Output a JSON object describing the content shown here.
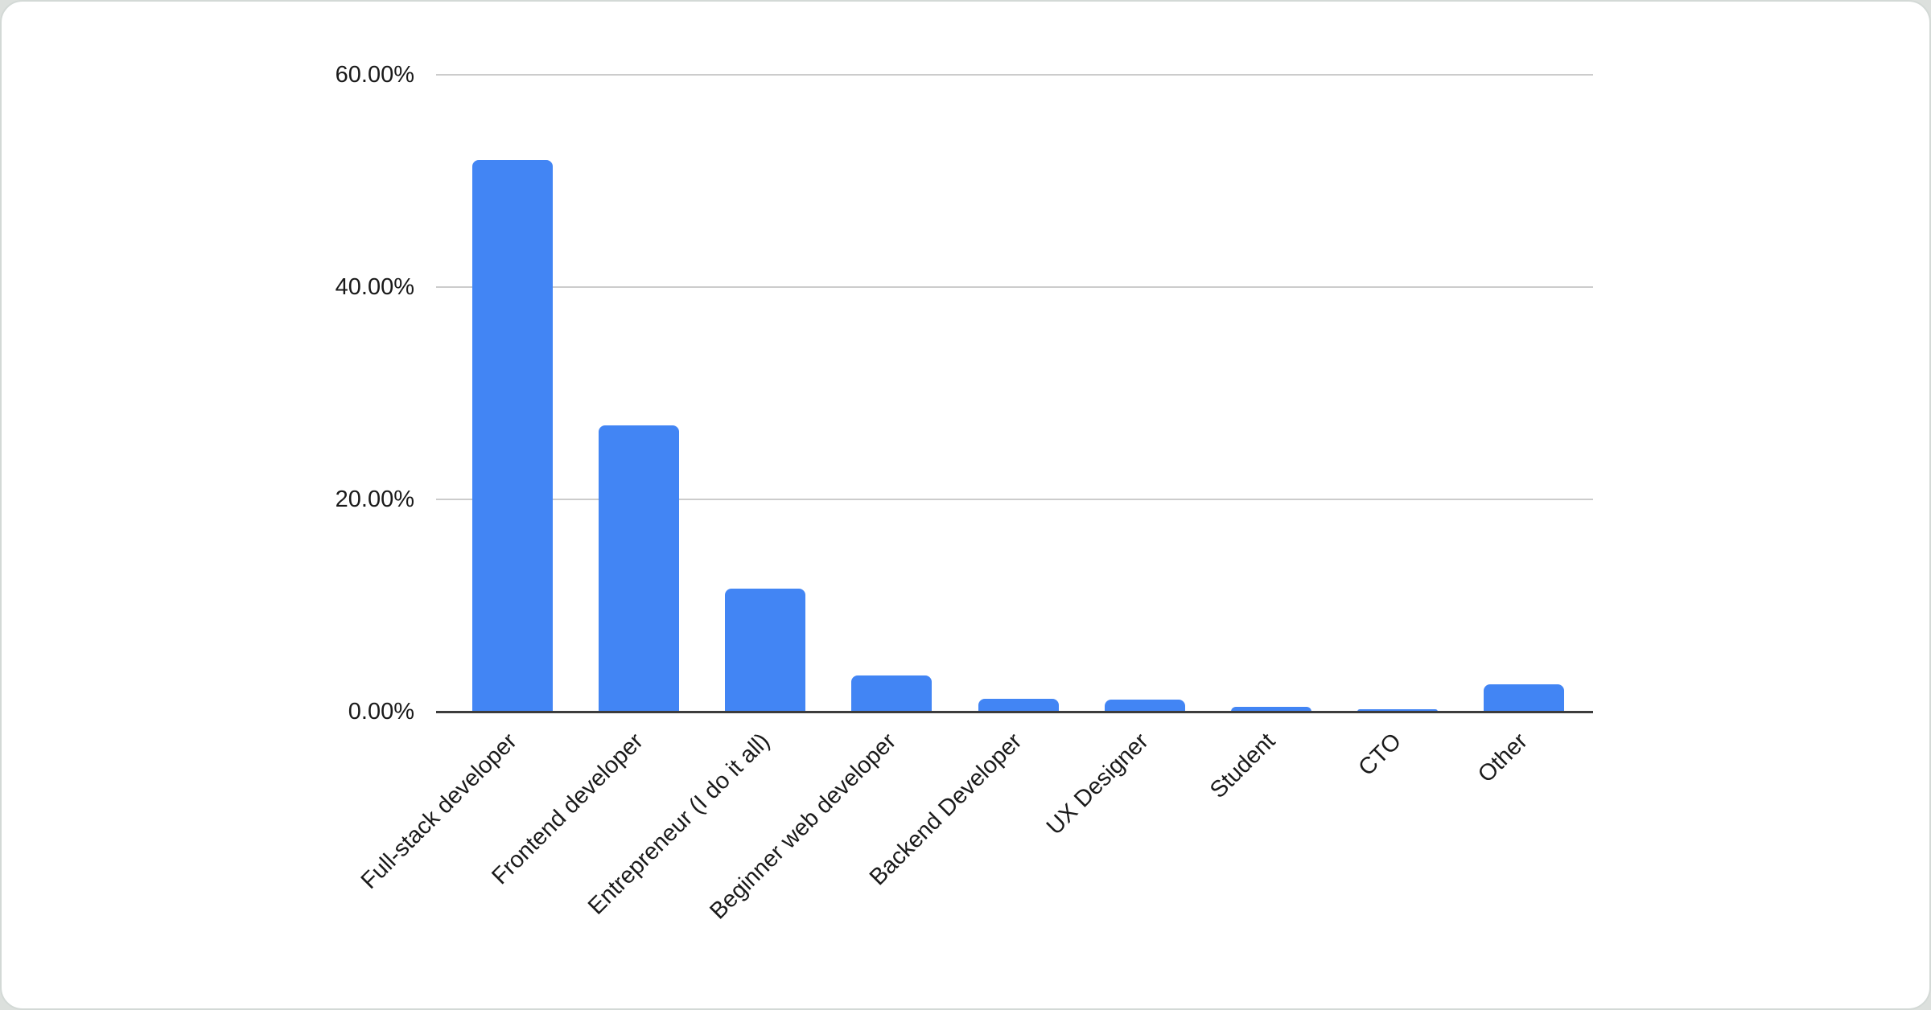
{
  "chart_data": {
    "type": "bar",
    "categories": [
      "Full-stack developer",
      "Frontend developer",
      "Entrepreneur (I do it all)",
      "Beginner web developer",
      "Backend Developer",
      "UX Designer",
      "Student",
      "CTO",
      "Other"
    ],
    "values": [
      52.0,
      27.0,
      11.6,
      3.4,
      1.2,
      1.1,
      0.45,
      0.25,
      2.6
    ],
    "title": "",
    "xlabel": "",
    "ylabel": "",
    "ylim": [
      0,
      60
    ],
    "yticks": [
      {
        "value": 0,
        "label": "0.00%"
      },
      {
        "value": 20,
        "label": "20.00%"
      },
      {
        "value": 40,
        "label": "40.00%"
      },
      {
        "value": 60,
        "label": "60.00%"
      }
    ],
    "grid": true,
    "legend": "none",
    "bar_color": "#4285f4"
  },
  "colors": {
    "bar": "#4285f4",
    "gridline": "#cccccc",
    "axis_line": "#3c3c3c",
    "text": "#1a1a1a",
    "card_background": "#ffffff",
    "page_background": "#dce0dd",
    "card_border": "#d3d9d6"
  }
}
